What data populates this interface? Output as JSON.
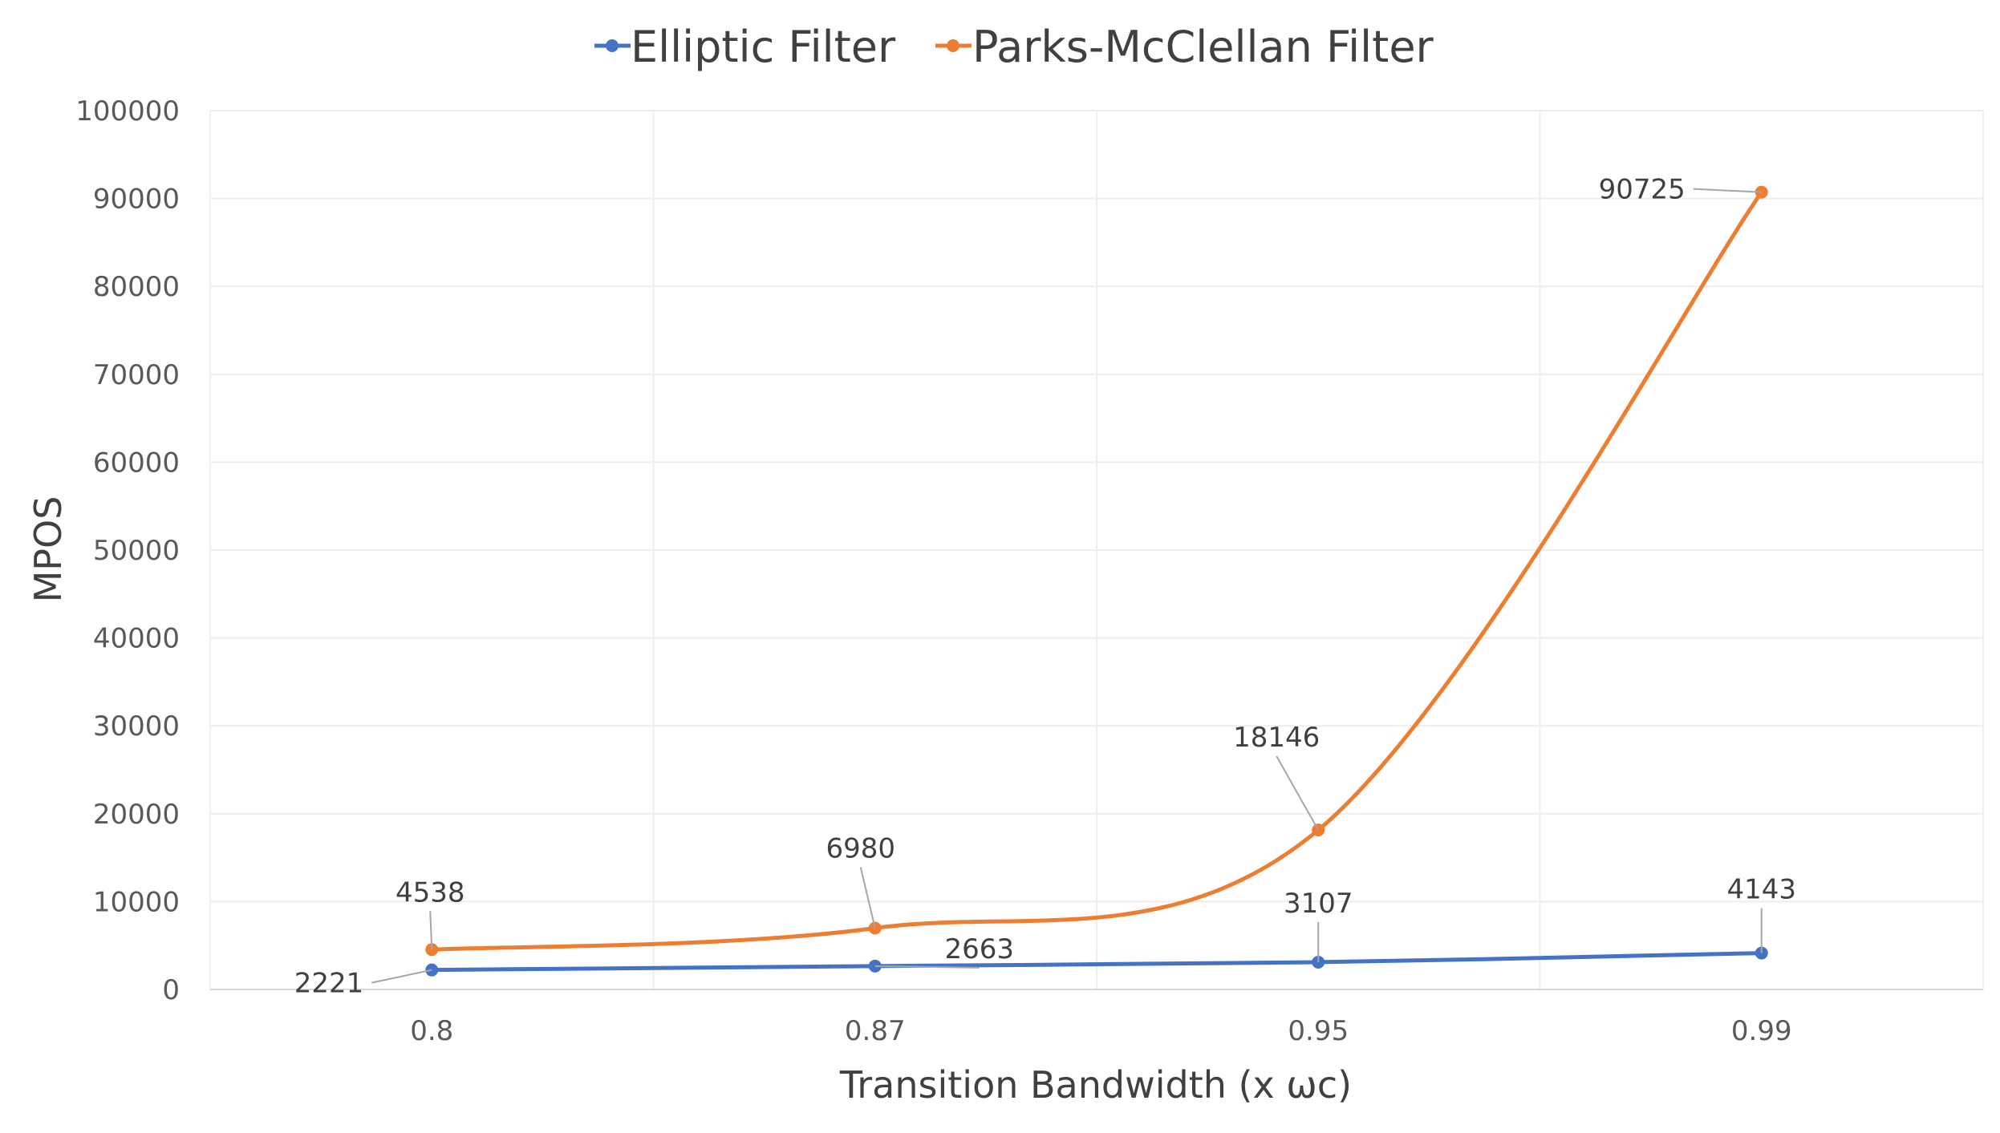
{
  "chart_data": {
    "type": "line",
    "title": "",
    "xlabel": "Transition Bandwidth (x ωc)",
    "ylabel": "MPOS",
    "categories": [
      "0.8",
      "0.87",
      "0.95",
      "0.99"
    ],
    "ylim": [
      0,
      100000
    ],
    "yticks": [
      "0",
      "10000",
      "20000",
      "30000",
      "40000",
      "50000",
      "60000",
      "70000",
      "80000",
      "90000",
      "100000"
    ],
    "grid": true,
    "legend_position": "top",
    "smooth": true,
    "series": [
      {
        "name": "Elliptic Filter",
        "color": "#4472C4",
        "values": [
          2221,
          2663,
          3107,
          4143
        ],
        "labels": [
          "2221",
          "2663",
          "3107",
          "4143"
        ]
      },
      {
        "name": "Parks-McClellan Filter",
        "color": "#ED7D31",
        "values": [
          4538,
          6980,
          18146,
          90725
        ],
        "labels": [
          "4538",
          "6980",
          "18146",
          "90725"
        ]
      }
    ]
  }
}
